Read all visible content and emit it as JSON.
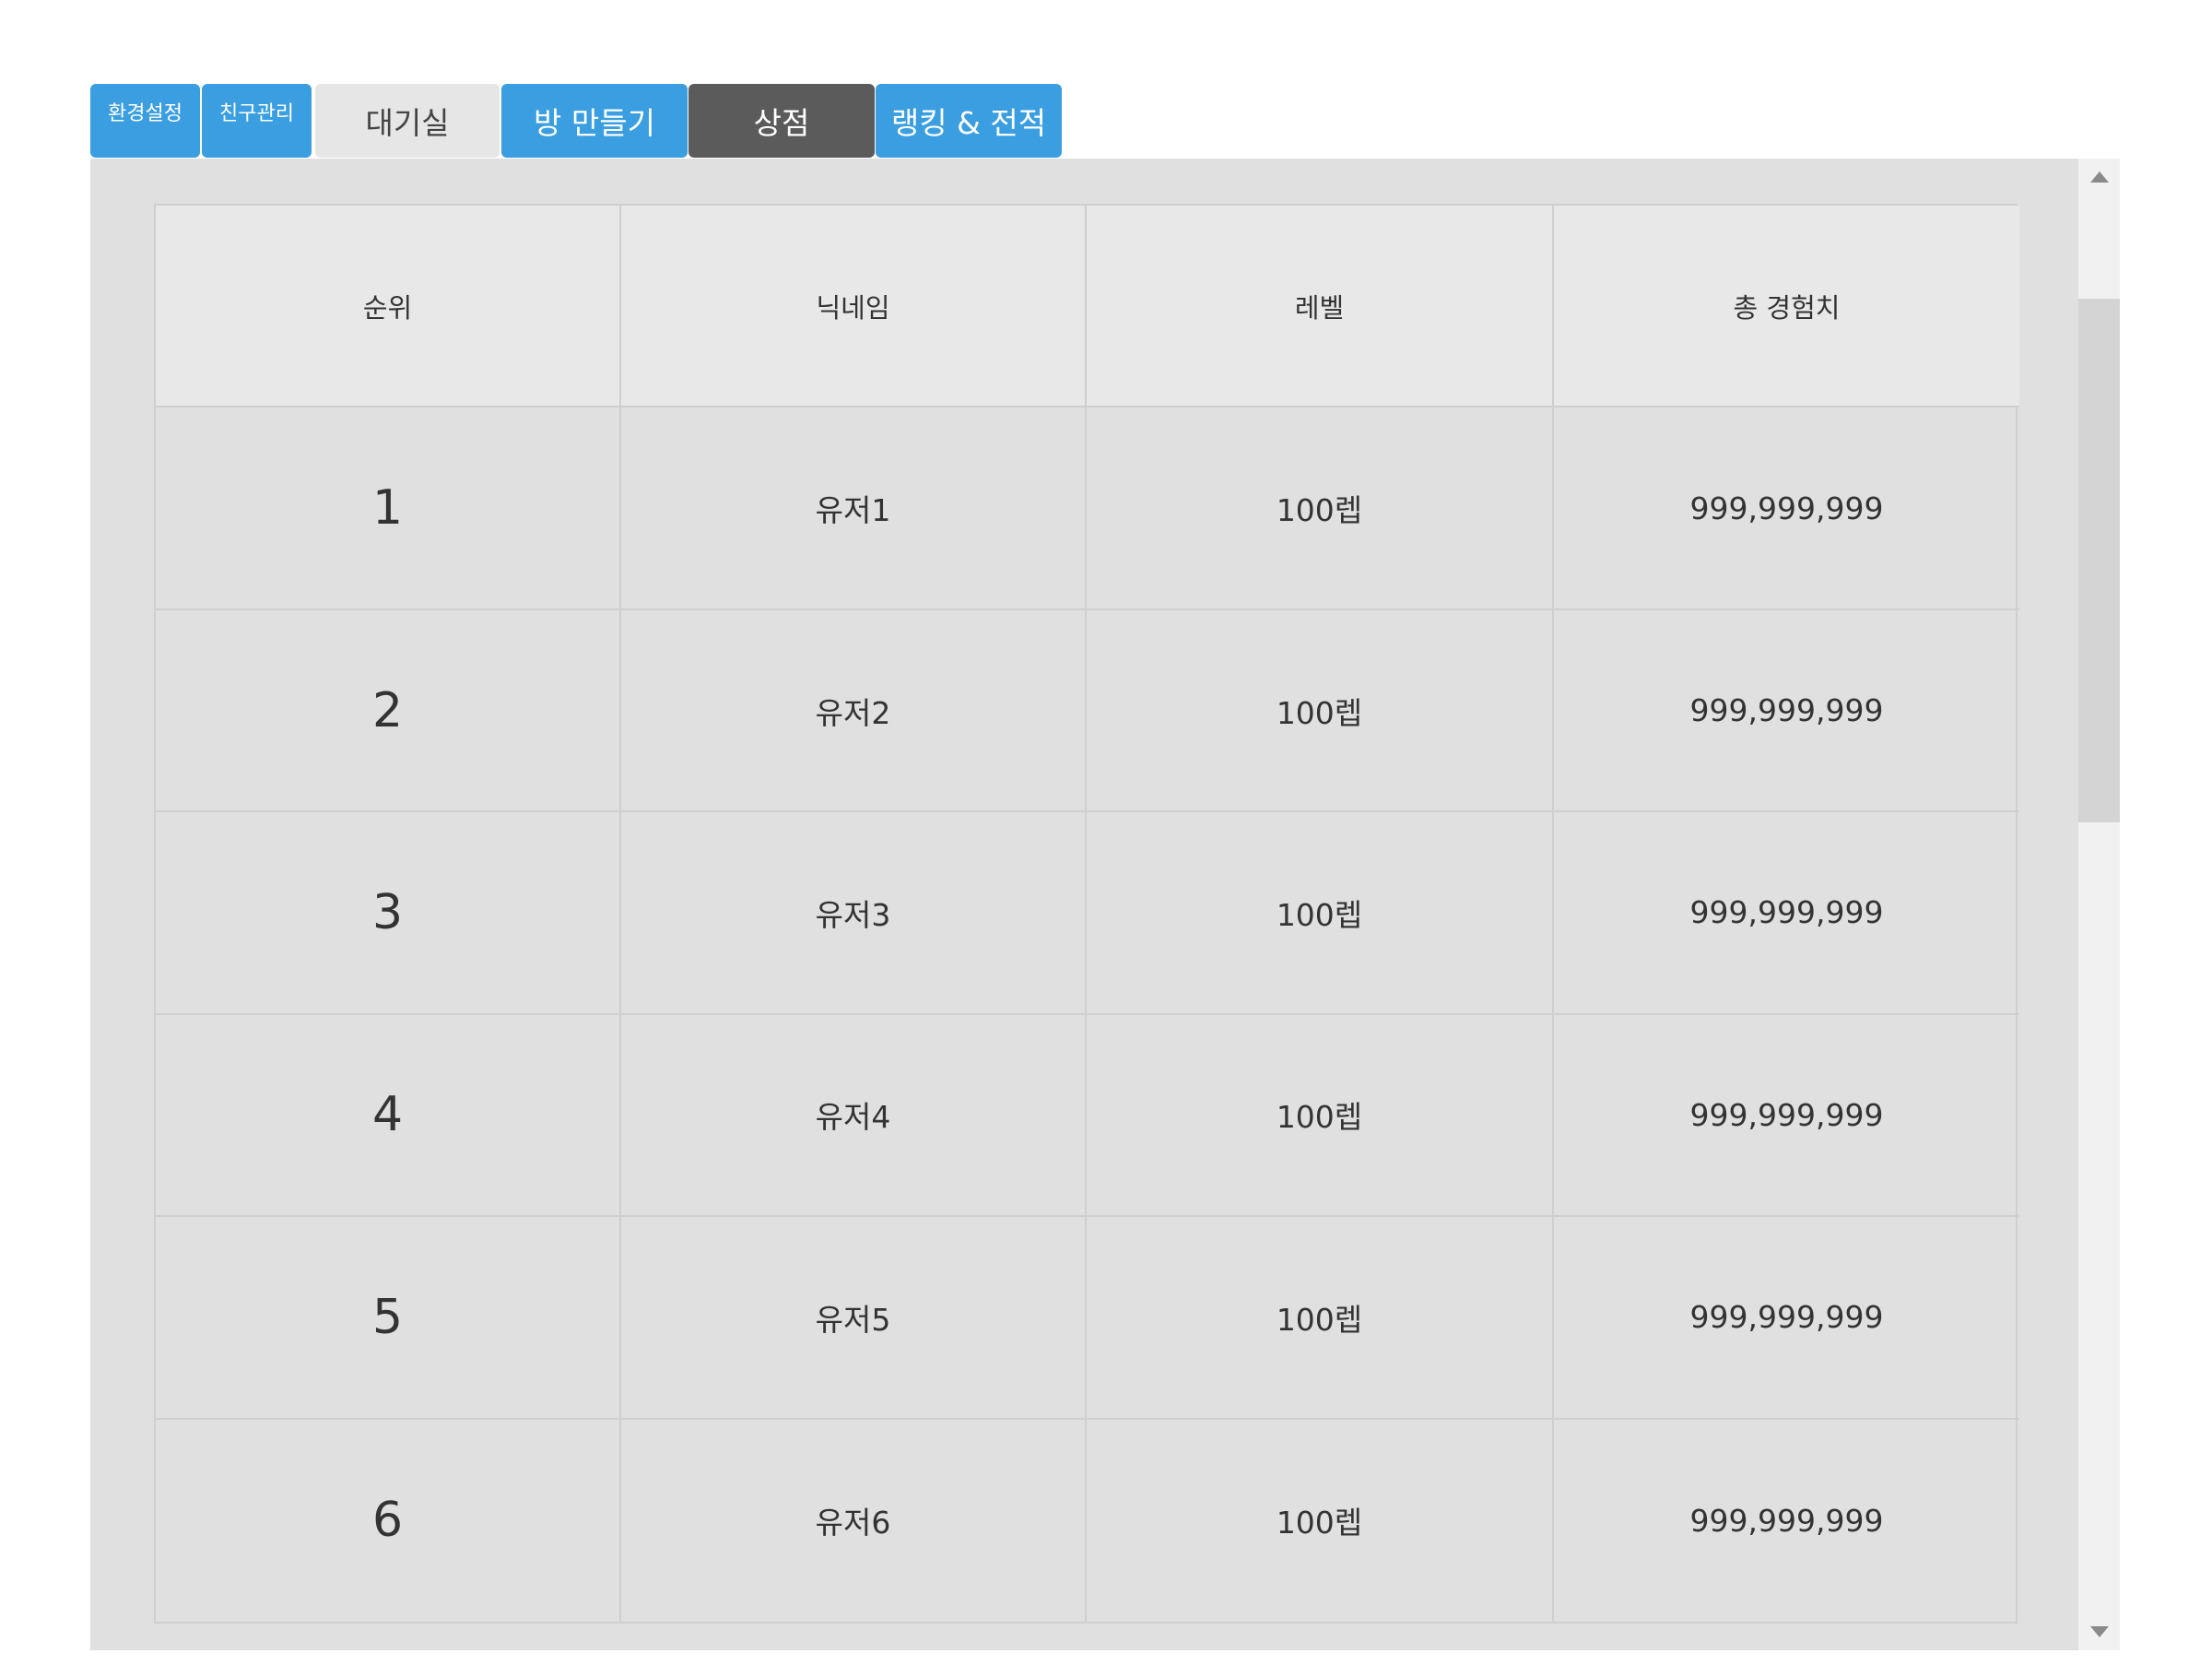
{
  "tabs": [
    {
      "label": "환경설정"
    },
    {
      "label": "친구관리"
    },
    {
      "label": "대기실"
    },
    {
      "label": "방 만들기"
    },
    {
      "label": "상점"
    },
    {
      "label": "랭킹 & 전적"
    }
  ],
  "ranking": {
    "headers": [
      "순위",
      "닉네임",
      "레벨",
      "총 경험치"
    ],
    "rows": [
      {
        "rank": "1",
        "nickname": "유저1",
        "level": "100렙",
        "exp": "999,999,999"
      },
      {
        "rank": "2",
        "nickname": "유저2",
        "level": "100렙",
        "exp": "999,999,999"
      },
      {
        "rank": "3",
        "nickname": "유저3",
        "level": "100렙",
        "exp": "999,999,999"
      },
      {
        "rank": "4",
        "nickname": "유저4",
        "level": "100렙",
        "exp": "999,999,999"
      },
      {
        "rank": "5",
        "nickname": "유저5",
        "level": "100렙",
        "exp": "999,999,999"
      },
      {
        "rank": "6",
        "nickname": "유저6",
        "level": "100렙",
        "exp": "999,999,999"
      }
    ]
  },
  "colors": {
    "tab_blue": "#3a9ee0",
    "tab_dark": "#5b5b5b",
    "tab_light": "#e6e6e6",
    "panel": "#e0e0e0",
    "header_cell": "#e8e8e8"
  }
}
